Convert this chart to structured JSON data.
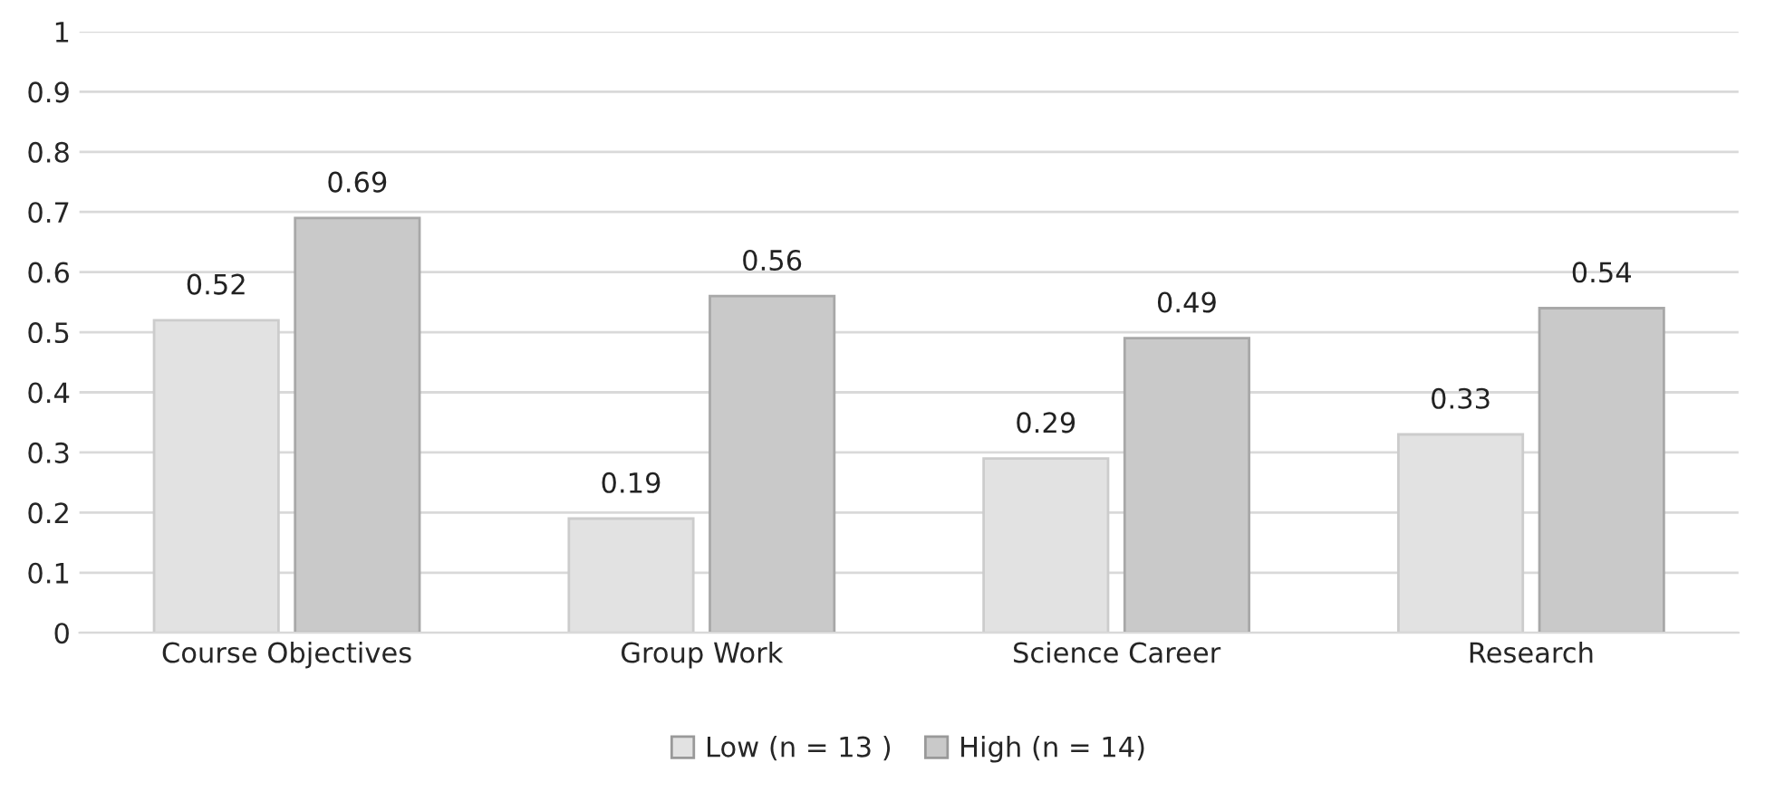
{
  "chart_data": {
    "type": "bar",
    "categories": [
      "Course Objectives",
      "Group Work",
      "Science Career",
      "Research"
    ],
    "series": [
      {
        "name": "Low (n = 13 )",
        "color": "#e2e2e2",
        "values": [
          0.52,
          0.19,
          0.29,
          0.33
        ]
      },
      {
        "name": "High (n = 14)",
        "color": "#c9c9c9",
        "values": [
          0.69,
          0.56,
          0.49,
          0.54
        ]
      }
    ],
    "ylim": [
      0,
      1
    ],
    "yticks": [
      0,
      0.1,
      0.2,
      0.3,
      0.4,
      0.5,
      0.6,
      0.7,
      0.8,
      0.9,
      1
    ],
    "grid": "y",
    "legend": "bottom",
    "data_labels": true
  }
}
